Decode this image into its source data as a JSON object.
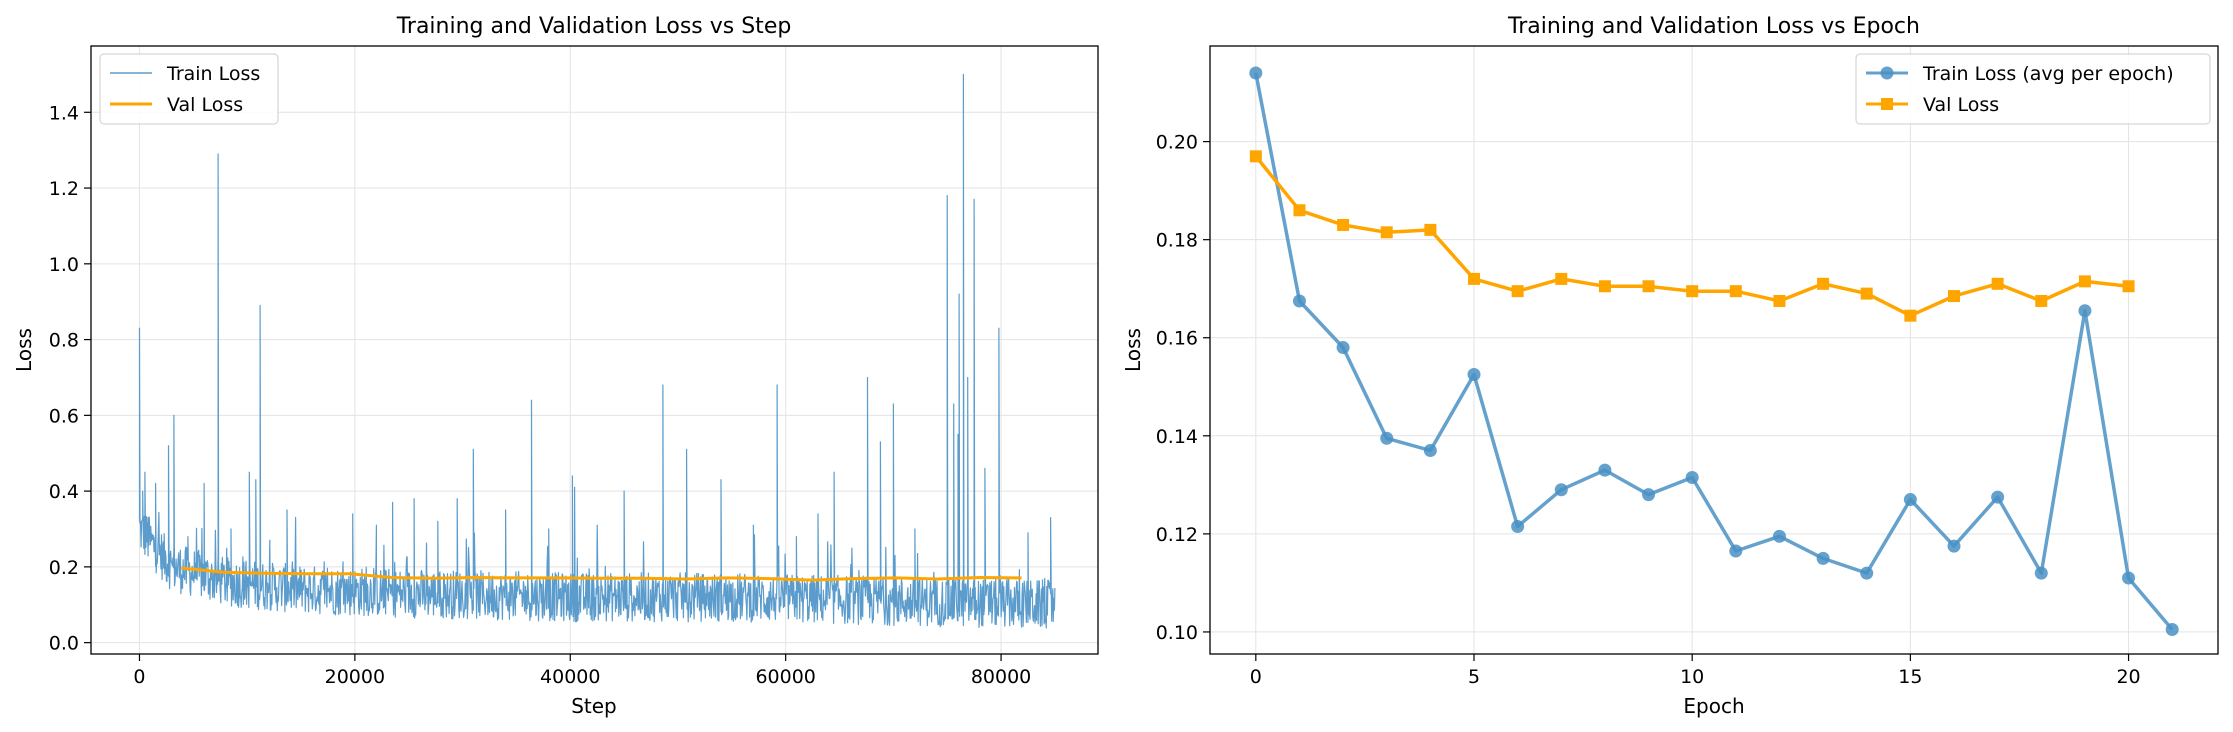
{
  "chart_data": [
    {
      "type": "line",
      "title": "Training and Validation Loss vs Step",
      "xlabel": "Step",
      "ylabel": "Loss",
      "xlim": [
        -4500,
        89000
      ],
      "ylim": [
        -0.03,
        1.575
      ],
      "xticks": [
        0,
        20000,
        40000,
        60000,
        80000
      ],
      "yticks": [
        0.0,
        0.2,
        0.4,
        0.6,
        0.8,
        1.0,
        1.2,
        1.4
      ],
      "ytick_labels": [
        "0.0",
        "0.2",
        "0.4",
        "0.6",
        "0.8",
        "1.0",
        "1.2",
        "1.4"
      ],
      "grid": true,
      "legend": "upper-left",
      "series": [
        {
          "name": "Train Loss",
          "color": "#5b9ccc",
          "style": "thin-line",
          "base_points": [
            [
              0,
              0.3
            ],
            [
              3000,
              0.2
            ],
            [
              8000,
              0.16
            ],
            [
              15000,
              0.14
            ],
            [
              25000,
              0.13
            ],
            [
              40000,
              0.12
            ],
            [
              55000,
              0.12
            ],
            [
              70000,
              0.11
            ],
            [
              85000,
              0.1
            ]
          ],
          "spikes": [
            [
              0,
              0.83
            ],
            [
              300,
              0.4
            ],
            [
              500,
              0.45
            ],
            [
              800,
              0.33
            ],
            [
              1500,
              0.42
            ],
            [
              2700,
              0.52
            ],
            [
              3200,
              0.6
            ],
            [
              4500,
              0.28
            ],
            [
              6000,
              0.42
            ],
            [
              7300,
              1.29
            ],
            [
              8500,
              0.3
            ],
            [
              10200,
              0.45
            ],
            [
              10800,
              0.43
            ],
            [
              11200,
              0.89
            ],
            [
              13700,
              0.35
            ],
            [
              19800,
              0.34
            ],
            [
              22000,
              0.31
            ],
            [
              23500,
              0.37
            ],
            [
              25500,
              0.38
            ],
            [
              27700,
              0.32
            ],
            [
              29500,
              0.38
            ],
            [
              31000,
              0.51
            ],
            [
              34000,
              0.35
            ],
            [
              36400,
              0.64
            ],
            [
              38000,
              0.3
            ],
            [
              40200,
              0.44
            ],
            [
              40400,
              0.41
            ],
            [
              42500,
              0.31
            ],
            [
              45000,
              0.4
            ],
            [
              48600,
              0.68
            ],
            [
              50800,
              0.51
            ],
            [
              54000,
              0.43
            ],
            [
              57000,
              0.31
            ],
            [
              59200,
              0.68
            ],
            [
              61000,
              0.28
            ],
            [
              63000,
              0.34
            ],
            [
              64500,
              0.45
            ],
            [
              67600,
              0.7
            ],
            [
              68800,
              0.53
            ],
            [
              70000,
              0.63
            ],
            [
              72000,
              0.3
            ],
            [
              75000,
              1.18
            ],
            [
              75600,
              0.63
            ],
            [
              76000,
              0.55
            ],
            [
              76100,
              0.92
            ],
            [
              76500,
              1.5
            ],
            [
              76900,
              0.7
            ],
            [
              77500,
              1.17
            ],
            [
              78500,
              0.46
            ],
            [
              79800,
              0.83
            ],
            [
              82500,
              0.29
            ],
            [
              84600,
              0.33
            ]
          ],
          "n_samples": 1700,
          "last_step": 85000
        },
        {
          "name": "Val Loss",
          "color": "#ffa500",
          "style": "thick-line",
          "x": [
            3900,
            7800,
            11700,
            15600,
            19500,
            23400,
            27300,
            31200,
            35100,
            39000,
            42900,
            46800,
            50700,
            54600,
            58500,
            62400,
            66300,
            70200,
            74100,
            78000,
            81900
          ],
          "y": [
            0.197,
            0.186,
            0.183,
            0.182,
            0.182,
            0.172,
            0.17,
            0.172,
            0.171,
            0.171,
            0.17,
            0.17,
            0.168,
            0.171,
            0.169,
            0.165,
            0.169,
            0.171,
            0.168,
            0.172,
            0.171
          ]
        }
      ]
    },
    {
      "type": "line",
      "title": "Training and Validation Loss vs Epoch",
      "xlabel": "Epoch",
      "ylabel": "Loss",
      "xlim": [
        -1.05,
        22.05
      ],
      "ylim": [
        0.0955,
        0.2195
      ],
      "xticks": [
        0,
        5,
        10,
        15,
        20
      ],
      "yticks": [
        0.1,
        0.12,
        0.14,
        0.16,
        0.18,
        0.2
      ],
      "ytick_labels": [
        "0.10",
        "0.12",
        "0.14",
        "0.16",
        "0.18",
        "0.20"
      ],
      "grid": true,
      "legend": "upper-right",
      "series": [
        {
          "name": "Train Loss (avg per epoch)",
          "color": "#4a90c4",
          "marker": "circle",
          "x": [
            0,
            1,
            2,
            3,
            4,
            5,
            6,
            7,
            8,
            9,
            10,
            11,
            12,
            13,
            14,
            15,
            16,
            17,
            18,
            19,
            20,
            21
          ],
          "y": [
            0.214,
            0.1675,
            0.158,
            0.1395,
            0.137,
            0.1525,
            0.1215,
            0.129,
            0.133,
            0.128,
            0.1315,
            0.1165,
            0.1195,
            0.115,
            0.112,
            0.127,
            0.1175,
            0.1275,
            0.112,
            0.1655,
            0.111,
            0.1005
          ]
        },
        {
          "name": "Val Loss",
          "color": "#ffa500",
          "marker": "square",
          "x": [
            0,
            1,
            2,
            3,
            4,
            5,
            6,
            7,
            8,
            9,
            10,
            11,
            12,
            13,
            14,
            15,
            16,
            17,
            18,
            19,
            20
          ],
          "y": [
            0.197,
            0.186,
            0.183,
            0.1815,
            0.182,
            0.172,
            0.1695,
            0.172,
            0.1705,
            0.1705,
            0.1695,
            0.1695,
            0.1675,
            0.171,
            0.169,
            0.1645,
            0.1685,
            0.171,
            0.1675,
            0.1715,
            0.1705
          ]
        }
      ]
    }
  ]
}
